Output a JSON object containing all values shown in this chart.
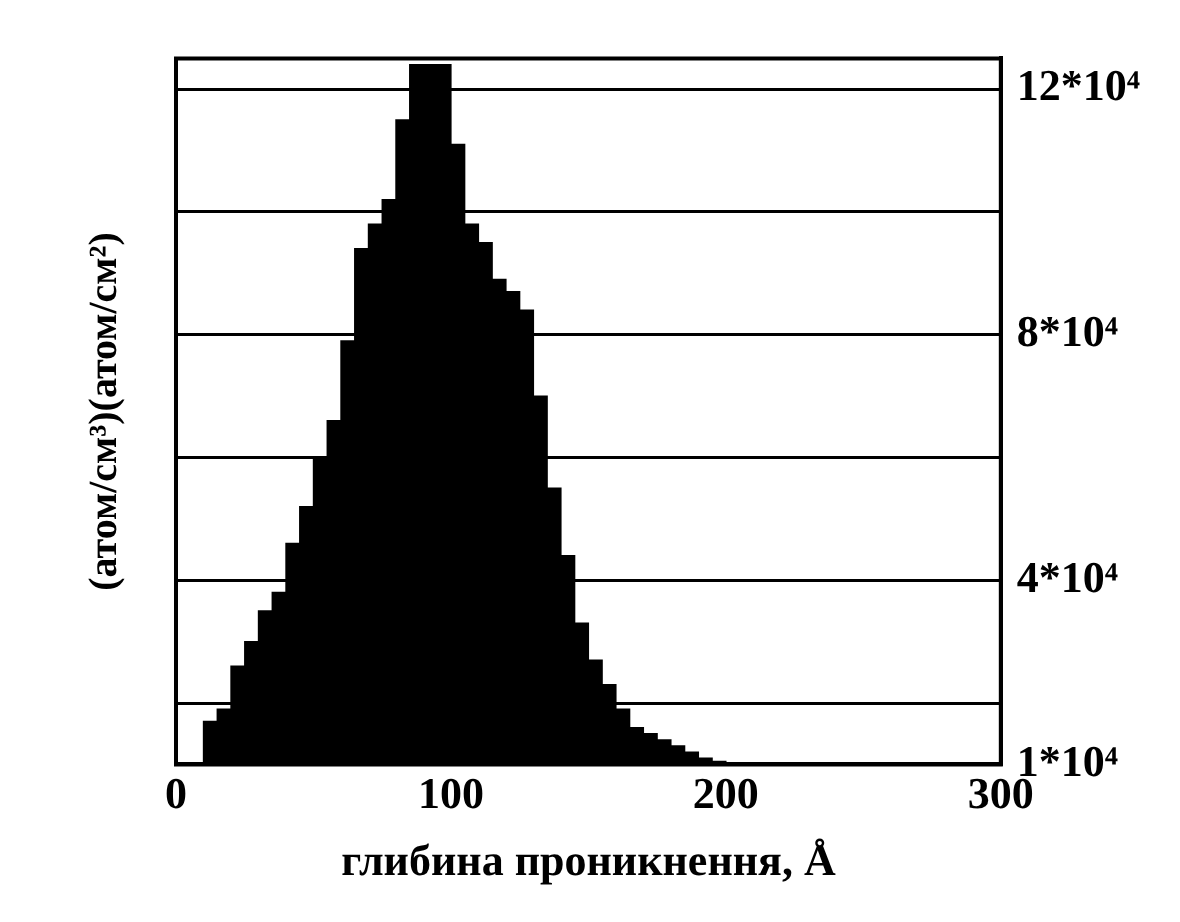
{
  "chart_data": {
    "type": "histogram",
    "xlabel": "глибина проникнення, Å",
    "ylabel": "(атом/см³)(атом/см²)",
    "bins": [
      10,
      15,
      20,
      25,
      30,
      35,
      40,
      45,
      50,
      55,
      60,
      65,
      70,
      75,
      80,
      85,
      90,
      95,
      100,
      105,
      110,
      115,
      120,
      125,
      130,
      135,
      140,
      145,
      150,
      155,
      160,
      165,
      170,
      175,
      180,
      185,
      190,
      195,
      200
    ],
    "values": [
      17000,
      19000,
      26000,
      30000,
      35000,
      38000,
      46000,
      52000,
      60000,
      66000,
      79000,
      94000,
      98000,
      102000,
      115000,
      124000,
      124000,
      124000,
      111000,
      98000,
      95000,
      89000,
      87000,
      84000,
      70000,
      55000,
      44000,
      33000,
      27000,
      23000,
      19000,
      16000,
      15000,
      14000,
      13000,
      12000,
      11000,
      10500
    ],
    "color": "#000000",
    "xlim": [
      0,
      300
    ],
    "xticks": [
      0,
      100,
      200,
      300
    ],
    "ylim": [
      10000,
      125000
    ],
    "yticks": [
      {
        "value": 10000,
        "label": "1*10⁴"
      },
      {
        "value": 20000,
        "label": null
      },
      {
        "value": 40000,
        "label": "4*10⁴"
      },
      {
        "value": 60000,
        "label": null
      },
      {
        "value": 80000,
        "label": "8*10⁴"
      },
      {
        "value": 100000,
        "label": null
      },
      {
        "value": 120000,
        "label": "12*10⁴"
      }
    ],
    "grid": "y"
  }
}
